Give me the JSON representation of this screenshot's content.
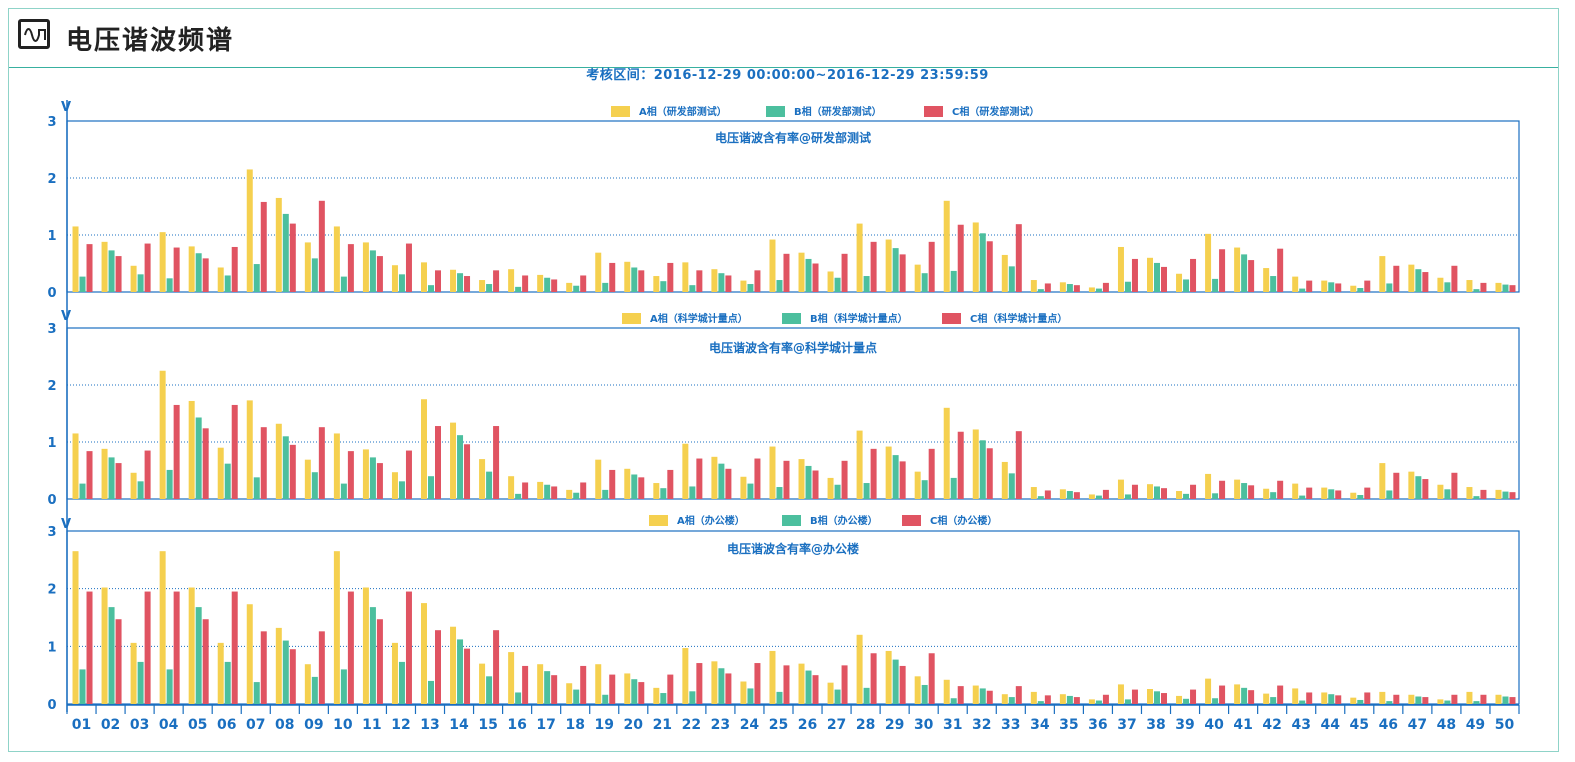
{
  "header": {
    "title": "电压谐波频谱",
    "icon": "waveform-icon"
  },
  "period_text": "考核区间：2016-12-29  00:00:00~2016-12-29  23:59:59",
  "y_unit": "V",
  "colors": {
    "A": "#f5d04f",
    "B": "#4cbf9e",
    "C": "#e05462",
    "axis": "#1a6fc0",
    "grid": "#1a6fc0"
  },
  "chart_data": [
    {
      "type": "bar",
      "title": "电压谐波含有率@研发部测试",
      "ylim": [
        0,
        3
      ],
      "yticks": [
        0,
        1,
        2,
        3
      ],
      "categories": [
        "01",
        "02",
        "03",
        "04",
        "05",
        "06",
        "07",
        "08",
        "09",
        "10",
        "11",
        "12",
        "13",
        "14",
        "15",
        "16",
        "17",
        "18",
        "19",
        "20",
        "21",
        "22",
        "23",
        "24",
        "25",
        "26",
        "27",
        "28",
        "29",
        "30",
        "31",
        "32",
        "33",
        "34",
        "35",
        "36",
        "37",
        "38",
        "39",
        "40",
        "41",
        "42",
        "43",
        "44",
        "45",
        "46",
        "47",
        "48",
        "49",
        "50"
      ],
      "series": [
        {
          "name": "A相（研发部测试）",
          "values": [
            1.15,
            0.88,
            0.46,
            1.05,
            0.8,
            0.43,
            2.15,
            1.65,
            0.87,
            1.15,
            0.87,
            0.47,
            0.52,
            0.39,
            0.21,
            0.4,
            0.3,
            0.16,
            0.69,
            0.53,
            0.28,
            0.52,
            0.4,
            0.2,
            0.92,
            0.69,
            0.36,
            1.2,
            0.92,
            0.48,
            1.6,
            1.22,
            0.65,
            0.21,
            0.17,
            0.08,
            0.79,
            0.6,
            0.32,
            1.02,
            0.78,
            0.42,
            0.27,
            0.2,
            0.11,
            0.63,
            0.48,
            0.25,
            0.21,
            0.16
          ]
        },
        {
          "name": "B相（研发部测试）",
          "values": [
            0.27,
            0.73,
            0.31,
            0.24,
            0.68,
            0.29,
            0.49,
            1.37,
            0.59,
            0.27,
            0.73,
            0.31,
            0.12,
            0.33,
            0.14,
            0.09,
            0.25,
            0.11,
            0.16,
            0.43,
            0.19,
            0.12,
            0.33,
            0.14,
            0.21,
            0.58,
            0.25,
            0.28,
            0.77,
            0.33,
            0.37,
            1.03,
            0.45,
            0.05,
            0.14,
            0.06,
            0.18,
            0.51,
            0.22,
            0.23,
            0.66,
            0.28,
            0.06,
            0.17,
            0.07,
            0.15,
            0.4,
            0.17,
            0.05,
            0.13
          ]
        },
        {
          "name": "C相（研发部测试）",
          "values": [
            0.84,
            0.63,
            0.85,
            0.78,
            0.59,
            0.79,
            1.58,
            1.2,
            1.6,
            0.84,
            0.63,
            0.85,
            0.38,
            0.28,
            0.38,
            0.29,
            0.22,
            0.29,
            0.51,
            0.38,
            0.51,
            0.38,
            0.29,
            0.38,
            0.67,
            0.5,
            0.67,
            0.88,
            0.66,
            0.88,
            1.18,
            0.89,
            1.19,
            0.15,
            0.12,
            0.16,
            0.58,
            0.44,
            0.58,
            0.75,
            0.56,
            0.76,
            0.2,
            0.15,
            0.2,
            0.46,
            0.35,
            0.46,
            0.16,
            0.12
          ]
        }
      ]
    },
    {
      "type": "bar",
      "title": "电压谐波含有率@科学城计量点",
      "ylim": [
        0,
        3
      ],
      "yticks": [
        0,
        1,
        2,
        3
      ],
      "categories": [
        "01",
        "02",
        "03",
        "04",
        "05",
        "06",
        "07",
        "08",
        "09",
        "10",
        "11",
        "12",
        "13",
        "14",
        "15",
        "16",
        "17",
        "18",
        "19",
        "20",
        "21",
        "22",
        "23",
        "24",
        "25",
        "26",
        "27",
        "28",
        "29",
        "30",
        "31",
        "32",
        "33",
        "34",
        "35",
        "36",
        "37",
        "38",
        "39",
        "40",
        "41",
        "42",
        "43",
        "44",
        "45",
        "46",
        "47",
        "48",
        "49",
        "50"
      ],
      "series": [
        {
          "name": "A相（科学城计量点）",
          "values": [
            1.15,
            0.88,
            0.46,
            2.25,
            1.72,
            0.9,
            1.73,
            1.32,
            0.69,
            1.15,
            0.87,
            0.47,
            1.75,
            1.34,
            0.7,
            0.4,
            0.3,
            0.16,
            0.69,
            0.53,
            0.28,
            0.97,
            0.74,
            0.39,
            0.92,
            0.7,
            0.37,
            1.2,
            0.92,
            0.48,
            1.6,
            1.22,
            0.65,
            0.21,
            0.17,
            0.08,
            0.34,
            0.26,
            0.14,
            0.44,
            0.34,
            0.18,
            0.27,
            0.2,
            0.11,
            0.63,
            0.48,
            0.25,
            0.21,
            0.16
          ]
        },
        {
          "name": "B相（科学城计量点）",
          "values": [
            0.27,
            0.73,
            0.31,
            0.51,
            1.43,
            0.62,
            0.38,
            1.1,
            0.47,
            0.27,
            0.73,
            0.31,
            0.4,
            1.12,
            0.48,
            0.09,
            0.25,
            0.11,
            0.16,
            0.43,
            0.19,
            0.22,
            0.62,
            0.27,
            0.21,
            0.58,
            0.25,
            0.28,
            0.77,
            0.33,
            0.37,
            1.03,
            0.45,
            0.05,
            0.14,
            0.06,
            0.08,
            0.22,
            0.09,
            0.1,
            0.28,
            0.12,
            0.06,
            0.17,
            0.07,
            0.15,
            0.4,
            0.17,
            0.05,
            0.13
          ]
        },
        {
          "name": "C相（科学城计量点）",
          "values": [
            0.84,
            0.63,
            0.85,
            1.65,
            1.24,
            1.65,
            1.26,
            0.95,
            1.26,
            0.84,
            0.63,
            0.85,
            1.28,
            0.96,
            1.28,
            0.29,
            0.22,
            0.29,
            0.51,
            0.38,
            0.51,
            0.71,
            0.53,
            0.71,
            0.67,
            0.5,
            0.67,
            0.88,
            0.66,
            0.88,
            1.18,
            0.89,
            1.19,
            0.15,
            0.12,
            0.16,
            0.25,
            0.19,
            0.25,
            0.32,
            0.24,
            0.32,
            0.2,
            0.15,
            0.2,
            0.46,
            0.35,
            0.46,
            0.16,
            0.12
          ]
        }
      ]
    },
    {
      "type": "bar",
      "title": "电压谐波含有率@办公楼",
      "ylim": [
        0,
        3
      ],
      "yticks": [
        0,
        1,
        2,
        3
      ],
      "categories": [
        "01",
        "02",
        "03",
        "04",
        "05",
        "06",
        "07",
        "08",
        "09",
        "10",
        "11",
        "12",
        "13",
        "14",
        "15",
        "16",
        "17",
        "18",
        "19",
        "20",
        "21",
        "22",
        "23",
        "24",
        "25",
        "26",
        "27",
        "28",
        "29",
        "30",
        "31",
        "32",
        "33",
        "34",
        "35",
        "36",
        "37",
        "38",
        "39",
        "40",
        "41",
        "42",
        "43",
        "44",
        "45",
        "46",
        "47",
        "48",
        "49",
        "50"
      ],
      "series": [
        {
          "name": "A相（办公楼）",
          "values": [
            2.65,
            2.02,
            1.06,
            2.65,
            2.02,
            1.06,
            1.73,
            1.32,
            0.69,
            2.65,
            2.02,
            1.06,
            1.75,
            1.34,
            0.7,
            0.9,
            0.69,
            0.36,
            0.69,
            0.53,
            0.28,
            0.97,
            0.74,
            0.39,
            0.92,
            0.7,
            0.37,
            1.2,
            0.92,
            0.48,
            0.42,
            0.32,
            0.17,
            0.21,
            0.17,
            0.08,
            0.34,
            0.26,
            0.14,
            0.44,
            0.34,
            0.18,
            0.27,
            0.2,
            0.11,
            0.21,
            0.16,
            0.08,
            0.21,
            0.16
          ]
        },
        {
          "name": "B相（办公楼）",
          "values": [
            0.6,
            1.68,
            0.73,
            0.6,
            1.68,
            0.73,
            0.38,
            1.1,
            0.47,
            0.6,
            1.68,
            0.73,
            0.4,
            1.12,
            0.48,
            0.2,
            0.57,
            0.25,
            0.16,
            0.43,
            0.19,
            0.22,
            0.62,
            0.27,
            0.21,
            0.58,
            0.25,
            0.28,
            0.77,
            0.33,
            0.1,
            0.27,
            0.12,
            0.05,
            0.14,
            0.06,
            0.08,
            0.22,
            0.09,
            0.1,
            0.28,
            0.12,
            0.06,
            0.17,
            0.07,
            0.05,
            0.13,
            0.06,
            0.05,
            0.13
          ]
        },
        {
          "name": "C相（办公楼）",
          "values": [
            1.95,
            1.47,
            1.95,
            1.95,
            1.47,
            1.95,
            1.26,
            0.95,
            1.26,
            1.95,
            1.47,
            1.95,
            1.28,
            0.96,
            1.28,
            0.66,
            0.5,
            0.66,
            0.51,
            0.38,
            0.51,
            0.71,
            0.53,
            0.71,
            0.67,
            0.5,
            0.67,
            0.88,
            0.66,
            0.88,
            0.31,
            0.23,
            0.31,
            0.15,
            0.12,
            0.16,
            0.25,
            0.19,
            0.25,
            0.32,
            0.24,
            0.32,
            0.2,
            0.15,
            0.2,
            0.16,
            0.12,
            0.16,
            0.16,
            0.12
          ]
        }
      ]
    }
  ]
}
